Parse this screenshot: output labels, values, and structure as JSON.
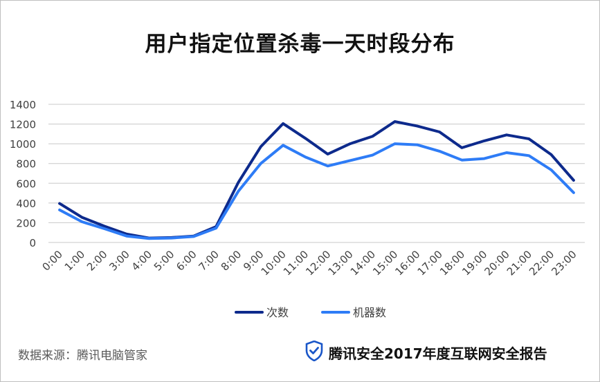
{
  "chart_data": {
    "type": "line",
    "title": "用户指定位置杀毒一天时段分布",
    "categories": [
      "0:00",
      "1:00",
      "2:00",
      "3:00",
      "4:00",
      "5:00",
      "6:00",
      "7:00",
      "8:00",
      "9:00",
      "10:00",
      "11:00",
      "12:00",
      "13:00",
      "14:00",
      "15:00",
      "16:00",
      "17:00",
      "18:00",
      "19:00",
      "20:00",
      "21:00",
      "22:00",
      "23:00"
    ],
    "series": [
      {
        "name": "次数",
        "color": "#0d2a8c",
        "values": [
          395,
          255,
          165,
          85,
          45,
          50,
          65,
          160,
          610,
          970,
          1205,
          1055,
          895,
          1000,
          1075,
          1225,
          1180,
          1120,
          960,
          1030,
          1090,
          1050,
          890,
          630
        ]
      },
      {
        "name": "机器数",
        "color": "#2e7cf6",
        "values": [
          330,
          210,
          140,
          65,
          40,
          45,
          60,
          145,
          520,
          800,
          985,
          865,
          775,
          830,
          885,
          1000,
          990,
          925,
          835,
          850,
          910,
          880,
          735,
          505
        ]
      }
    ],
    "ylim": [
      0,
      1400
    ],
    "yticks": [
      0,
      200,
      400,
      600,
      800,
      1000,
      1200,
      1400
    ],
    "grid": true,
    "legend_position": "bottom"
  },
  "footer": {
    "source": "数据来源：腾讯电脑管家",
    "brand": "腾讯安全2017年度互联网安全报告",
    "brand_icon": "shield-check-icon"
  }
}
